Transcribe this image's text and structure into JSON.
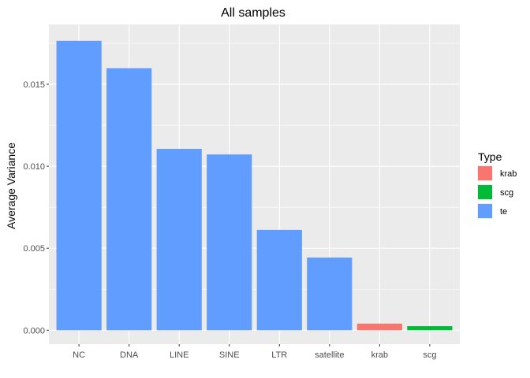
{
  "chart_data": {
    "type": "bar",
    "title": "All samples",
    "xlabel": "",
    "ylabel": "Average Variance",
    "categories": [
      "NC",
      "DNA",
      "LINE",
      "SINE",
      "LTR",
      "satellite",
      "krab",
      "scg"
    ],
    "values": [
      0.01765,
      0.01598,
      0.01106,
      0.01072,
      0.00612,
      0.00443,
      0.0004,
      0.00025
    ],
    "bar_types": [
      "te",
      "te",
      "te",
      "te",
      "te",
      "te",
      "krab",
      "scg"
    ],
    "ylim": [
      -0.00085,
      0.01865
    ],
    "yticks": [
      0.0,
      0.005,
      0.01,
      0.015
    ],
    "ytick_labels": [
      "0.000",
      "0.005",
      "0.010",
      "0.015"
    ],
    "grid": true,
    "legend": {
      "title": "Type",
      "placement": "right",
      "entries": [
        {
          "label": "krab",
          "color": "#F8766D"
        },
        {
          "label": "scg",
          "color": "#00BA38"
        },
        {
          "label": "te",
          "color": "#619CFF"
        }
      ]
    },
    "colors": {
      "panel": "#EBEBEB",
      "grid_major": "#FFFFFF",
      "axis_text": "#4D4D4D"
    }
  }
}
